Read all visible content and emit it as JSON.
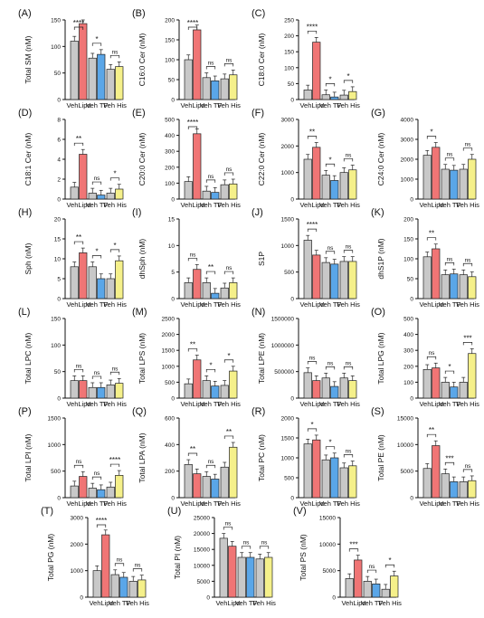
{
  "colors": {
    "veh": "#c8c8c8",
    "lipo": "#f07575",
    "tf": "#5aa6e8",
    "his": "#f5f08a",
    "axis": "#111111"
  },
  "group_labels": [
    "Veh",
    "Lipo",
    "Veh",
    "TF",
    "Veh",
    "His"
  ],
  "chart_data": [
    {
      "type": "bar",
      "panel": "(A)",
      "ylabel": "Total SM (nM)",
      "ylim": [
        0,
        150
      ],
      "yticks": [
        "0",
        "50",
        "100",
        "150"
      ],
      "values": [
        110,
        143,
        78,
        85,
        57,
        62
      ],
      "sig": [
        "****",
        "*",
        "ns"
      ]
    },
    {
      "type": "bar",
      "panel": "(B)",
      "ylabel": "C16:0 Cer (nM)",
      "ylim": [
        0,
        200
      ],
      "yticks": [
        "0",
        "50",
        "100",
        "150",
        "200"
      ],
      "values": [
        100,
        175,
        55,
        47,
        52,
        62
      ],
      "sig": [
        "****",
        "ns",
        "ns"
      ]
    },
    {
      "type": "bar",
      "panel": "(C)",
      "ylabel": "C18:0 Cer (nM)",
      "ylim": [
        0,
        250
      ],
      "yticks": [
        "0",
        "50",
        "100",
        "150",
        "200",
        "250"
      ],
      "values": [
        30,
        180,
        15,
        8,
        14,
        25
      ],
      "sig": [
        "****",
        "*",
        "*"
      ]
    },
    {
      "type": "bar",
      "panel": "(D)",
      "ylabel": "C18:1 Cer (nM)",
      "ylim": [
        0,
        8
      ],
      "yticks": [
        "0",
        "2",
        "4",
        "6",
        "8"
      ],
      "values": [
        1.2,
        4.5,
        0.6,
        0.4,
        0.6,
        1.0
      ],
      "sig": [
        "**",
        "ns",
        "*"
      ]
    },
    {
      "type": "bar",
      "panel": "(E)",
      "ylabel": "C20:0 Cer (nM)",
      "ylim": [
        0,
        500
      ],
      "yticks": [
        "0",
        "100",
        "200",
        "300",
        "400",
        "500"
      ],
      "values": [
        110,
        410,
        50,
        42,
        90,
        95
      ],
      "sig": [
        "****",
        "ns",
        "ns"
      ]
    },
    {
      "type": "bar",
      "panel": "(F)",
      "ylabel": "C22:0 Cer (nM)",
      "ylim": [
        0,
        3000
      ],
      "yticks": [
        "0",
        "1000",
        "2000",
        "3000"
      ],
      "values": [
        1500,
        1950,
        900,
        700,
        1000,
        1100
      ],
      "sig": [
        "**",
        "*",
        "ns"
      ]
    },
    {
      "type": "bar",
      "panel": "(G)",
      "ylabel": "C24:0 Cer (nM)",
      "ylim": [
        0,
        4000
      ],
      "yticks": [
        "0",
        "1000",
        "2000",
        "3000",
        "4000"
      ],
      "values": [
        2200,
        2600,
        1500,
        1450,
        1500,
        2000
      ],
      "sig": [
        "*",
        "ns",
        "ns"
      ]
    },
    {
      "type": "bar",
      "panel": "(H)",
      "ylabel": "Sph (nM)",
      "ylim": [
        0,
        20
      ],
      "yticks": [
        "0",
        "5",
        "10",
        "15",
        "20"
      ],
      "values": [
        8,
        11.5,
        8,
        5,
        5,
        9.5
      ],
      "sig": [
        "**",
        "*",
        "*"
      ]
    },
    {
      "type": "bar",
      "panel": "(I)",
      "ylabel": "dhSph (nM)",
      "ylim": [
        0,
        15
      ],
      "yticks": [
        "0",
        "5",
        "10",
        "15"
      ],
      "values": [
        3,
        5.5,
        3,
        1,
        2,
        3
      ],
      "sig": [
        "ns",
        "**",
        "ns"
      ]
    },
    {
      "type": "bar",
      "panel": "(J)",
      "ylabel": "S1P",
      "ylim": [
        0,
        1500
      ],
      "yticks": [
        "0",
        "500",
        "1000",
        "1500"
      ],
      "values": [
        1100,
        820,
        680,
        650,
        700,
        700
      ],
      "sig": [
        "****",
        "ns",
        "ns"
      ]
    },
    {
      "type": "bar",
      "panel": "(K)",
      "ylabel": "dhS1P (nM)",
      "ylim": [
        0,
        200
      ],
      "yticks": [
        "0",
        "50",
        "100",
        "150",
        "200"
      ],
      "values": [
        105,
        125,
        60,
        62,
        60,
        55
      ],
      "sig": [
        "**",
        "ns",
        "ns"
      ]
    },
    {
      "type": "bar",
      "panel": "(L)",
      "ylabel": "Total LPC (nM)",
      "ylim": [
        0,
        150
      ],
      "yticks": [
        "0",
        "50",
        "100",
        "150"
      ],
      "values": [
        33,
        33,
        20,
        20,
        25,
        28
      ],
      "sig": [
        "ns",
        "ns",
        "ns"
      ]
    },
    {
      "type": "bar",
      "panel": "(M)",
      "ylabel": "Total LPS (nM)",
      "ylim": [
        0,
        2500
      ],
      "yticks": [
        "0",
        "500",
        "1000",
        "1500",
        "2000",
        "2500"
      ],
      "values": [
        450,
        1200,
        550,
        380,
        400,
        850
      ],
      "sig": [
        "**",
        "*",
        "*"
      ]
    },
    {
      "type": "bar",
      "panel": "(N)",
      "ylabel": "Total LPE (nM)",
      "ylim": [
        0,
        1500000
      ],
      "yticks": [
        "0",
        "500000",
        "1000000",
        "1500000"
      ],
      "values": [
        480000,
        330000,
        380000,
        220000,
        380000,
        330000
      ],
      "sig": [
        "ns",
        "ns",
        "ns"
      ]
    },
    {
      "type": "bar",
      "panel": "(O)",
      "ylabel": "Total LPG (nM)",
      "ylim": [
        0,
        500
      ],
      "yticks": [
        "0",
        "100",
        "200",
        "300",
        "400",
        "500"
      ],
      "values": [
        180,
        190,
        100,
        70,
        100,
        280
      ],
      "sig": [
        "ns",
        "*",
        "***"
      ]
    },
    {
      "type": "bar",
      "panel": "(P)",
      "ylabel": "Total LPI (nM)",
      "ylim": [
        0,
        1500
      ],
      "yticks": [
        "0",
        "500",
        "1000",
        "1500"
      ],
      "values": [
        220,
        400,
        180,
        150,
        200,
        420
      ],
      "sig": [
        "ns",
        "ns",
        "****"
      ]
    },
    {
      "type": "bar",
      "panel": "(Q)",
      "ylabel": "Total LPA (nM)",
      "ylim": [
        0,
        600
      ],
      "yticks": [
        "0",
        "200",
        "400",
        "600"
      ],
      "values": [
        250,
        180,
        160,
        140,
        230,
        380
      ],
      "sig": [
        "**",
        "ns",
        "**"
      ]
    },
    {
      "type": "bar",
      "panel": "(R)",
      "ylabel": "Total PC (nM)",
      "ylim": [
        0,
        2000
      ],
      "yticks": [
        "0",
        "500",
        "1000",
        "1500",
        "2000"
      ],
      "values": [
        1350,
        1450,
        950,
        1000,
        750,
        800
      ],
      "sig": [
        "*",
        "*",
        "ns"
      ]
    },
    {
      "type": "bar",
      "panel": "(S)",
      "ylabel": "Total PE (nM)",
      "ylim": [
        0,
        15000
      ],
      "yticks": [
        "0",
        "5000",
        "10000",
        "15000"
      ],
      "values": [
        5500,
        9800,
        4500,
        3000,
        3000,
        3200
      ],
      "sig": [
        "**",
        "***",
        "ns"
      ]
    },
    {
      "type": "bar",
      "panel": "(T)",
      "ylabel": "Total PG (nM)",
      "ylim": [
        0,
        3000
      ],
      "yticks": [
        "0",
        "1000",
        "2000",
        "3000"
      ],
      "values": [
        1000,
        2350,
        850,
        750,
        600,
        650
      ],
      "sig": [
        "****",
        "ns",
        "ns"
      ]
    },
    {
      "type": "bar",
      "panel": "(U)",
      "ylabel": "Total PI (nM)",
      "ylim": [
        0,
        25000
      ],
      "yticks": [
        "0",
        "5000",
        "10000",
        "15000",
        "20000",
        "25000"
      ],
      "values": [
        18500,
        16000,
        12500,
        12500,
        12000,
        12500
      ],
      "sig": [
        "ns",
        "ns",
        "ns"
      ]
    },
    {
      "type": "bar",
      "panel": "(V)",
      "ylabel": "Total PS (nM)",
      "ylim": [
        0,
        15000
      ],
      "yticks": [
        "0",
        "5000",
        "10000",
        "15000"
      ],
      "values": [
        3500,
        7000,
        3000,
        2500,
        1500,
        4000
      ],
      "sig": [
        "***",
        "ns",
        "*"
      ]
    }
  ]
}
